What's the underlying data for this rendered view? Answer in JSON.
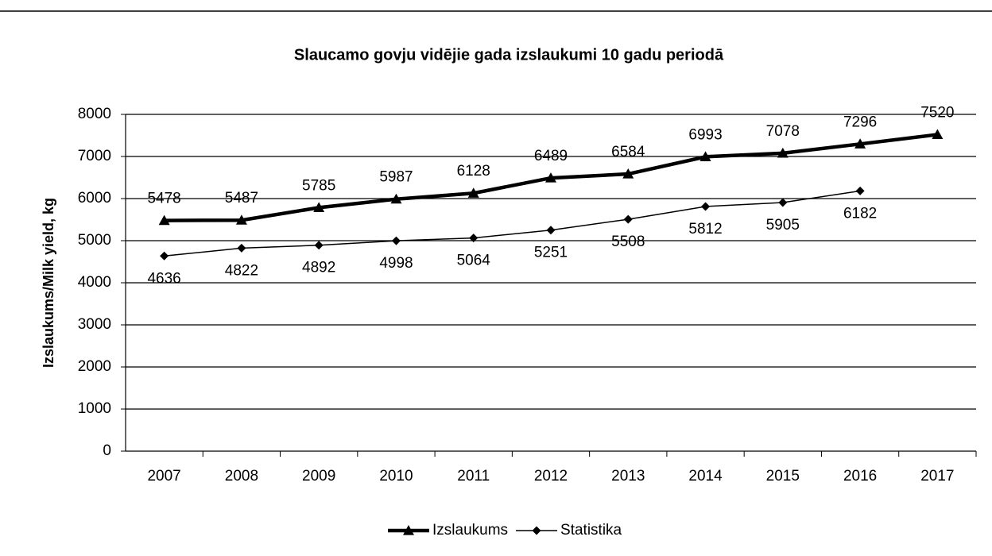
{
  "chart_data": {
    "type": "line",
    "title": "Slaucamo govju vidējie gada izslaukumi 10 gadu periodā",
    "y_label": "Izslaukums/Milk yield, kg",
    "categories": [
      "2007",
      "2008",
      "2009",
      "2010",
      "2011",
      "2012",
      "2013",
      "2014",
      "2015",
      "2016",
      "2017"
    ],
    "series": [
      {
        "name": "Izslaukums",
        "color": "#000000",
        "marker": "triangle",
        "values": [
          5478,
          5487,
          5785,
          5987,
          6128,
          6489,
          6584,
          6993,
          7078,
          7296,
          7520
        ]
      },
      {
        "name": "Statistika",
        "color": "#000000",
        "marker": "diamond",
        "values": [
          4636,
          4822,
          4892,
          4998,
          5064,
          5251,
          5508,
          5812,
          5905,
          6182,
          null
        ]
      }
    ],
    "ylim": [
      0,
      8000
    ],
    "yticks": [
      0,
      1000,
      2000,
      3000,
      4000,
      5000,
      6000,
      7000,
      8000
    ],
    "grid": true,
    "legend": "bottom"
  }
}
